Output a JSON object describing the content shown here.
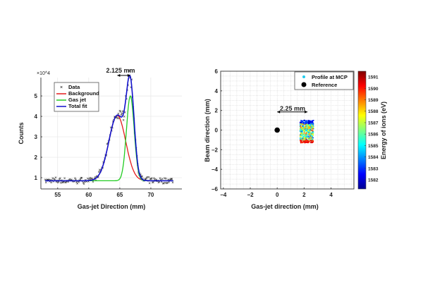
{
  "chart_data": [
    {
      "type": "line",
      "title": "",
      "xlabel": "Gas-jet Direction (mm)",
      "ylabel": "Counts",
      "y_multiplier_label": "×10^4",
      "xlim": [
        52.3,
        75.0
      ],
      "ylim": [
        0.45,
        5.9
      ],
      "xticks": [
        55,
        60,
        65,
        70
      ],
      "yticks": [
        1,
        2,
        3,
        4,
        5
      ],
      "grid": true,
      "legend_position": "top-left",
      "annotation": "2.125 mm",
      "annotation_arrow_x": [
        64.6,
        66.7
      ],
      "series": [
        {
          "name": "Data",
          "marker": "x",
          "color": "#000000"
        },
        {
          "name": "Background",
          "color": "#e41a1c",
          "model": {
            "baseline": 0.85,
            "amp": 3.2,
            "center": 64.6,
            "sigma": 1.35
          }
        },
        {
          "name": "Gas jet",
          "color": "#22cc22",
          "model": {
            "baseline": 0.85,
            "amp": 4.15,
            "center": 66.7,
            "sigma": 0.62
          }
        },
        {
          "name": "Total fit",
          "color": "#1111cc",
          "model": "Background + Gas jet"
        }
      ]
    },
    {
      "type": "scatter",
      "title": "",
      "xlabel": "Gas-jet direction (mm)",
      "ylabel": "Beam direction (mm)",
      "xlim": [
        -4.2,
        5.7
      ],
      "ylim": [
        -6,
        6
      ],
      "xticks": [
        -4,
        -2,
        0,
        2,
        4
      ],
      "yticks": [
        -6,
        -4,
        -2,
        0,
        2,
        4,
        6
      ],
      "grid": true,
      "legend_position": "top-right",
      "annotation": "2.25 mm",
      "annotation_arrow_x": [
        0,
        2.25
      ],
      "series": [
        {
          "name": "Profile at MCP",
          "color": "#22ccee",
          "x_range": [
            1.7,
            2.7
          ],
          "y_range": [
            -1.3,
            1.0
          ],
          "color_by": "energy"
        },
        {
          "name": "Reference",
          "color": "#000000",
          "points": [
            [
              0,
              0
            ]
          ]
        }
      ],
      "colorbar": {
        "label": "Energy of ions (eV)",
        "range": [
          1581.2,
          1591.5
        ],
        "ticks": [
          1582,
          1583,
          1584,
          1585,
          1586,
          1587,
          1588,
          1589,
          1590,
          1591
        ],
        "colormap": "jet"
      }
    }
  ]
}
